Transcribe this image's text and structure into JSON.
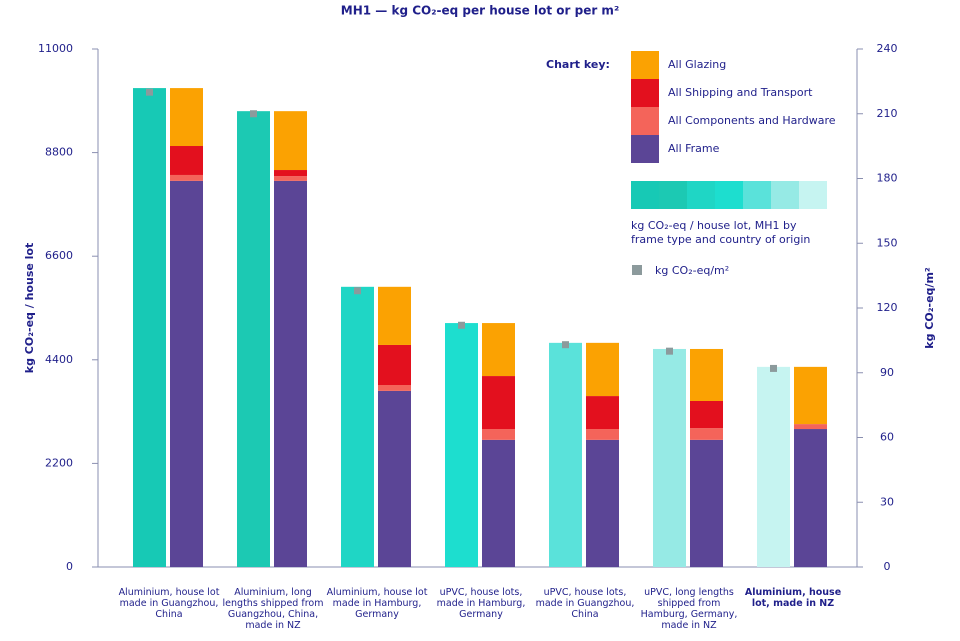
{
  "chart_data": {
    "type": "bar",
    "title": "MH1 — kg CO₂-eq per house lot or per m²",
    "y_label": "kg CO₂-eq / house lot",
    "y2_label": "kg CO₂-eq/m²",
    "legend_title": "Chart key:",
    "categories": [
      "Aluminium, house lot made in Guangzhou, China",
      "Aluminium, long lengths shipped from Guangzhou, China, made in NZ",
      "Aluminium, house lot made in Hamburg, Germany",
      "uPVC, house lots, made in Hamburg, Germany",
      "uPVC, house lots, made in Guangzhou, China",
      "uPVC, long lengths shipped from Hamburg, Germany, made in NZ",
      "Aluminium, house lot, made in NZ"
    ],
    "highlight_index": 6,
    "ylim": [
      0,
      11000
    ],
    "yticks": [
      0,
      2200,
      4400,
      6600,
      8800,
      11000
    ],
    "y2lim": [
      0,
      240
    ],
    "y2ticks": [
      0,
      30,
      60,
      90,
      120,
      150,
      180,
      210,
      240
    ],
    "series": [
      {
        "name": "kg CO₂-eq / house lot, MH1 by frame type and country of origin",
        "kind": "total",
        "colors": [
          "#17c9b5",
          "#1cc9b3",
          "#1fd6c5",
          "#1ddecf",
          "#5ae2da",
          "#96eae5",
          "#c6f4f1"
        ],
        "values": [
          10170,
          9680,
          5950,
          5180,
          4760,
          4630,
          4250
        ]
      },
      {
        "name": "All Frame",
        "kind": "stacked",
        "color": "#5b4596",
        "values": [
          8200,
          8200,
          3740,
          2700,
          2700,
          2700,
          2930
        ]
      },
      {
        "name": "All Components and Hardware",
        "kind": "stacked",
        "color": "#f4645a",
        "values": [
          125,
          100,
          125,
          230,
          230,
          250,
          105
        ]
      },
      {
        "name": "All Shipping and Transport",
        "kind": "stacked",
        "color": "#e3101e",
        "values": [
          615,
          130,
          850,
          1125,
          700,
          575,
          0
        ]
      },
      {
        "name": "All Glazing",
        "kind": "stacked",
        "color": "#fba202",
        "values": [
          1230,
          1250,
          1235,
          1125,
          1130,
          1105,
          1215
        ]
      },
      {
        "name": "kg CO₂-eq/m²",
        "kind": "marker",
        "axis": "y2",
        "color": "#8c9a9c",
        "values": [
          220,
          210,
          128,
          112,
          103,
          100,
          92
        ]
      }
    ]
  }
}
